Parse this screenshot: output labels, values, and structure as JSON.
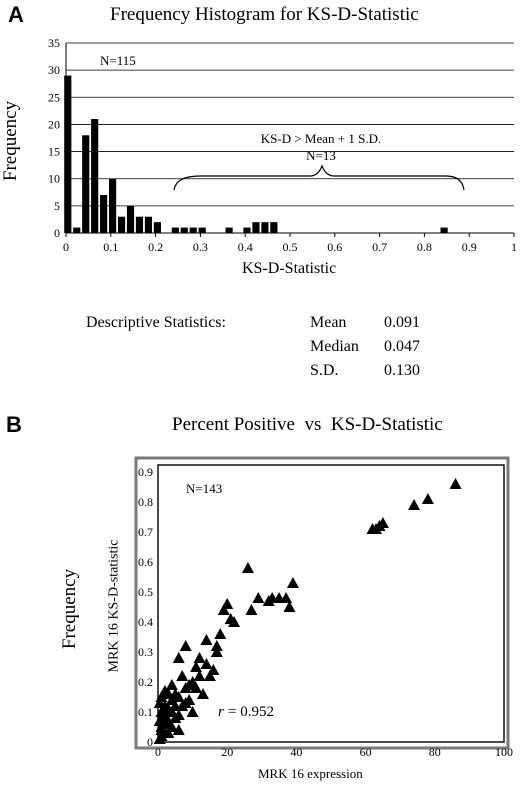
{
  "panel_a": {
    "letter": "A",
    "title": "Frequency Histogram for KS-D-Statistic",
    "ylabel": "Frequency",
    "xlabel": "KS-D-Statistic",
    "n_label": "N=115",
    "brace_label_line1": "KS-D > Mean + 1 S.D.",
    "brace_label_line2": "N=13",
    "stats_heading": "Descriptive Statistics:",
    "stats": [
      {
        "name": "Mean",
        "value": "0.091"
      },
      {
        "name": "Median",
        "value": "0.047"
      },
      {
        "name": "S.D.",
        "value": "0.130"
      }
    ]
  },
  "panel_b": {
    "letter": "B",
    "title": "Percent Positive  vs  KS-D-Statistic",
    "outer_ylabel": "Frequency",
    "ylabel": "MRK 16 KS-D-statistic",
    "xlabel": "MRK 16 expression",
    "n_label": "N=143",
    "r_label": "= 0.952",
    "r_symbol": "r"
  },
  "chart_data": [
    {
      "type": "bar",
      "title": "Frequency Histogram for KS-D-Statistic",
      "xlabel": "KS-D-Statistic",
      "ylabel": "Frequency",
      "xlim": [
        0,
        1
      ],
      "ylim": [
        0,
        35
      ],
      "xticks": [
        "0",
        "0.1",
        "0.2",
        "0.3",
        "0.4",
        "0.5",
        "0.6",
        "0.7",
        "0.8",
        "0.9",
        "1"
      ],
      "yticks": [
        "0",
        "5",
        "10",
        "15",
        "20",
        "25",
        "30",
        "35"
      ],
      "grid": "horizontal",
      "bin_width": 0.01,
      "x": [
        0.0,
        0.02,
        0.04,
        0.06,
        0.08,
        0.1,
        0.12,
        0.14,
        0.16,
        0.18,
        0.2,
        0.24,
        0.26,
        0.28,
        0.3,
        0.36,
        0.4,
        0.42,
        0.44,
        0.46,
        0.84
      ],
      "values": [
        29,
        1,
        18,
        21,
        7,
        10,
        3,
        5,
        3,
        3,
        2,
        1,
        1,
        1,
        1,
        1,
        1,
        2,
        2,
        2,
        1
      ],
      "annotations": [
        "N=115",
        "KS-D > Mean + 1 S.D.",
        "N=13"
      ]
    },
    {
      "type": "scatter",
      "title": "Percent Positive  vs  KS-D-Statistic",
      "xlabel": "MRK 16 expression",
      "ylabel": "MRK 16 KS-D-statistic",
      "xlim": [
        0,
        100
      ],
      "ylim": [
        0,
        0.9
      ],
      "xticks": [
        "0",
        "20",
        "40",
        "60",
        "80",
        "100"
      ],
      "yticks": [
        "0",
        "0.1",
        "0.2",
        "0.3",
        "0.4",
        "0.5",
        "0.6",
        "0.7",
        "0.8",
        "0.9"
      ],
      "grid": "off",
      "marker": "triangle",
      "points": [
        [
          86,
          0.86
        ],
        [
          78,
          0.81
        ],
        [
          74,
          0.79
        ],
        [
          65,
          0.73
        ],
        [
          64,
          0.72
        ],
        [
          63,
          0.71
        ],
        [
          62,
          0.71
        ],
        [
          39,
          0.53
        ],
        [
          37,
          0.48
        ],
        [
          35,
          0.48
        ],
        [
          38,
          0.45
        ],
        [
          33,
          0.48
        ],
        [
          32,
          0.47
        ],
        [
          29,
          0.48
        ],
        [
          27,
          0.44
        ],
        [
          26,
          0.58
        ],
        [
          22,
          0.4
        ],
        [
          21,
          0.41
        ],
        [
          20,
          0.46
        ],
        [
          19,
          0.44
        ],
        [
          18,
          0.36
        ],
        [
          17,
          0.32
        ],
        [
          17,
          0.3
        ],
        [
          16,
          0.24
        ],
        [
          15,
          0.22
        ],
        [
          14,
          0.26
        ],
        [
          14,
          0.34
        ],
        [
          12,
          0.28
        ],
        [
          12,
          0.22
        ],
        [
          11,
          0.25
        ],
        [
          10,
          0.2
        ],
        [
          9,
          0.19
        ],
        [
          8,
          0.32
        ],
        [
          8,
          0.18
        ],
        [
          7,
          0.22
        ],
        [
          6,
          0.15
        ],
        [
          6,
          0.28
        ],
        [
          5,
          0.16
        ],
        [
          5,
          0.12
        ],
        [
          4,
          0.19
        ],
        [
          4,
          0.1
        ],
        [
          3,
          0.16
        ],
        [
          3,
          0.11
        ],
        [
          3,
          0.07
        ],
        [
          2,
          0.17
        ],
        [
          2,
          0.12
        ],
        [
          2,
          0.06
        ],
        [
          2,
          0.03
        ],
        [
          1,
          0.15
        ],
        [
          1,
          0.1
        ],
        [
          1,
          0.08
        ],
        [
          1,
          0.05
        ],
        [
          1,
          0.02
        ],
        [
          0.5,
          0.13
        ],
        [
          0.5,
          0.07
        ],
        [
          0.5,
          0.01
        ],
        [
          13,
          0.16
        ],
        [
          9,
          0.14
        ],
        [
          7,
          0.12
        ],
        [
          6,
          0.09
        ],
        [
          5,
          0.08
        ],
        [
          4,
          0.05
        ],
        [
          3,
          0.03
        ],
        [
          11,
          0.18
        ],
        [
          10,
          0.1
        ],
        [
          8,
          0.13
        ],
        [
          6,
          0.04
        ],
        [
          4,
          0.14
        ],
        [
          2,
          0.09
        ],
        [
          1,
          0.04
        ]
      ],
      "annotations": [
        "N=143",
        "r = 0.952"
      ]
    }
  ]
}
